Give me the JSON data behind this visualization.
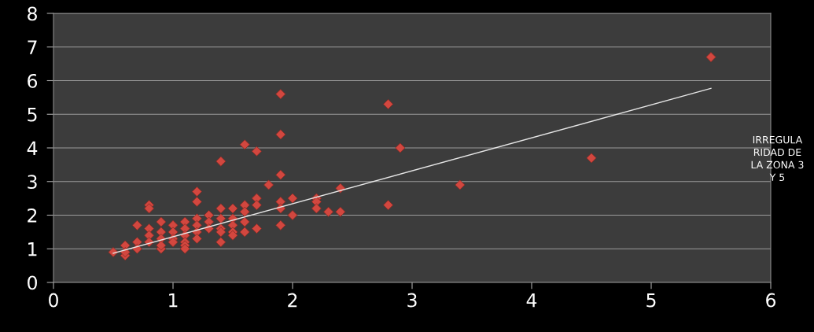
{
  "chart_data": {
    "type": "scatter",
    "xlim": [
      0,
      6
    ],
    "ylim": [
      0,
      8
    ],
    "xticks": [
      0,
      1,
      2,
      3,
      4,
      5,
      6
    ],
    "yticks": [
      0,
      1,
      2,
      3,
      4,
      5,
      6,
      7,
      8
    ],
    "grid": "y",
    "marker": "diamond",
    "annotations": [
      "IRREGULA\nRIDAD DE\nLA ZONA 3\nY 5"
    ],
    "series": [
      {
        "color": "#d2473f",
        "x": [
          0.5,
          0.6,
          0.6,
          0.6,
          0.7,
          0.7,
          0.7,
          0.8,
          0.8,
          0.8,
          0.8,
          0.8,
          0.9,
          0.9,
          0.9,
          0.9,
          0.9,
          1.0,
          1.0,
          1.0,
          1.0,
          1.1,
          1.1,
          1.1,
          1.1,
          1.1,
          1.1,
          1.2,
          1.2,
          1.2,
          1.2,
          1.2,
          1.2,
          1.3,
          1.3,
          1.3,
          1.4,
          1.4,
          1.4,
          1.4,
          1.4,
          1.4,
          1.5,
          1.5,
          1.5,
          1.5,
          1.5,
          1.6,
          1.6,
          1.6,
          1.6,
          1.6,
          1.7,
          1.7,
          1.7,
          1.7,
          1.8,
          1.9,
          1.9,
          1.9,
          1.9,
          1.9,
          1.9,
          2.0,
          2.0,
          2.2,
          2.2,
          2.2,
          2.3,
          2.4,
          2.4,
          2.8,
          2.8,
          2.9,
          3.4,
          4.5,
          5.5
        ],
        "values": [
          0.9,
          1.1,
          0.8,
          0.9,
          1.7,
          1.2,
          1.0,
          2.3,
          2.2,
          1.6,
          1.4,
          1.2,
          1.8,
          1.5,
          1.3,
          1.0,
          1.1,
          1.7,
          1.5,
          1.3,
          1.2,
          1.8,
          1.6,
          1.4,
          1.2,
          1.1,
          1.0,
          2.7,
          2.4,
          1.9,
          1.7,
          1.5,
          1.3,
          2.0,
          1.8,
          1.6,
          3.6,
          2.2,
          1.9,
          1.6,
          1.5,
          1.2,
          2.2,
          1.9,
          1.7,
          1.5,
          1.4,
          4.1,
          2.3,
          2.1,
          1.8,
          1.5,
          3.9,
          2.5,
          2.3,
          1.6,
          2.9,
          5.6,
          4.4,
          3.2,
          2.4,
          2.2,
          1.7,
          2.5,
          2.0,
          2.5,
          2.4,
          2.2,
          2.1,
          2.8,
          2.1,
          5.3,
          2.3,
          4.0,
          2.9,
          3.7,
          6.7
        ]
      },
      {
        "type": "line",
        "color": "#e6e6e6",
        "marker": "none",
        "line_style": "solid",
        "x": [
          0.5,
          5.5
        ],
        "values": [
          0.87,
          5.77
        ]
      }
    ]
  }
}
